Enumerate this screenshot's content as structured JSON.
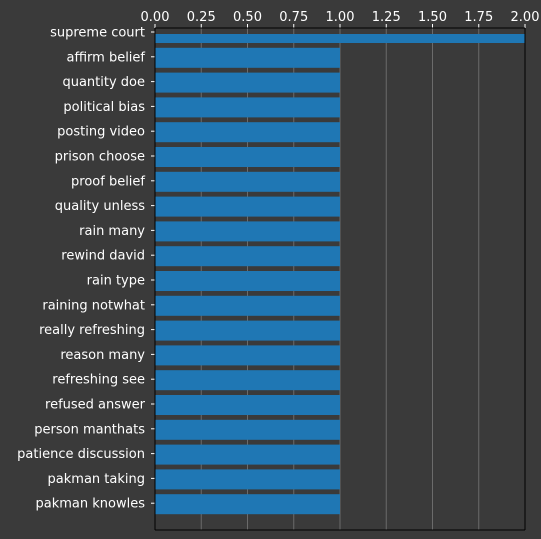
{
  "chart_data": {
    "type": "bar",
    "orientation": "horizontal",
    "categories": [
      "supreme court",
      "affirm belief",
      "quantity doe",
      "political bias",
      "posting video",
      "prison choose",
      "proof belief",
      "quality unless",
      "rain many",
      "rewind david",
      "rain type",
      "raining notwhat",
      "really refreshing",
      "reason many",
      "refreshing see",
      "refused answer",
      "person manthats",
      "patience discussion",
      "pakman taking",
      "pakman knowles"
    ],
    "values": [
      2,
      1,
      1,
      1,
      1,
      1,
      1,
      1,
      1,
      1,
      1,
      1,
      1,
      1,
      1,
      1,
      1,
      1,
      1,
      1
    ],
    "xlim": [
      0,
      2
    ],
    "xticks": [
      "0.00",
      "0.25",
      "0.50",
      "0.75",
      "1.00",
      "1.25",
      "1.50",
      "1.75",
      "2.00"
    ],
    "x_axis_position": "top",
    "grid": "vertical",
    "bar_color": "#1f77b4",
    "background_color": "#3a3a3a",
    "grid_color": "#6b6b6b",
    "text_color": "#ffffff"
  }
}
